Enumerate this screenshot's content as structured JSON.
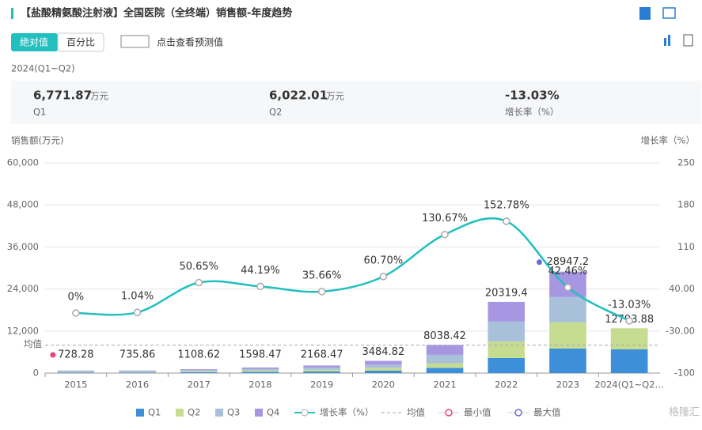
{
  "header": {
    "title": "【盐酸精氨酸注射液】全国医院（全终端）销售额-年度趋势"
  },
  "tabs": [
    "绝对值",
    "百分比"
  ],
  "forecast_toggle": "点击查看预测值",
  "period": "2024(Q1~Q2)",
  "stats": [
    {
      "value": "6,771.87",
      "unit": "万元",
      "label": "Q1"
    },
    {
      "value": "6,022.01",
      "unit": "万元",
      "label": "Q2"
    },
    {
      "value": "-13.03%",
      "label": "增长率（%）"
    }
  ],
  "watermark": "格隆汇",
  "chart_data": {
    "type": "bar",
    "stacked": true,
    "y_label": "销售额(万元)",
    "y2_label": "增长率（%）",
    "categories": [
      "2015",
      "2016",
      "2017",
      "2018",
      "2019",
      "2020",
      "2021",
      "2022",
      "2023",
      "2024(Q1~Q2…"
    ],
    "series": [
      {
        "name": "Q1",
        "color": "#3d8fd9",
        "values": [
          180,
          185,
          270,
          380,
          500,
          700,
          1500,
          4300,
          7000,
          6771.87
        ]
      },
      {
        "name": "Q2",
        "color": "#c6dc90",
        "values": [
          180,
          180,
          275,
          390,
          500,
          800,
          1300,
          4700,
          7500,
          6022.01
        ]
      },
      {
        "name": "Q3",
        "color": "#a8c0da",
        "values": [
          185,
          185,
          280,
          400,
          550,
          900,
          2400,
          5700,
          7200,
          null
        ]
      },
      {
        "name": "Q4",
        "color": "#a797e3",
        "values": [
          183.28,
          185.86,
          283.62,
          428.47,
          618.47,
          1084.82,
          2838.42,
          5619.4,
          7247.2,
          null
        ]
      },
      {
        "name": "增长率（%）",
        "type": "line",
        "axis": "y2",
        "color": "#22bfbf",
        "values": [
          0,
          1.04,
          50.65,
          44.19,
          35.66,
          60.7,
          130.67,
          152.78,
          42.46,
          -13.03
        ],
        "value_labels": [
          "0%",
          "1.04%",
          "50.65%",
          "44.19%",
          "35.66%",
          "60.70%",
          "130.67%",
          "152.78%",
          "42.46%",
          "-13.03%"
        ]
      }
    ],
    "totals": [
      728.28,
      735.86,
      1108.62,
      1598.47,
      2168.47,
      3484.82,
      8038.42,
      20319.4,
      28947.2,
      12793.88
    ],
    "average": {
      "name": "均值",
      "value": 7992.34
    },
    "min_marker": {
      "name": "最小值",
      "color": "#e8457a"
    },
    "max_marker": {
      "name": "最大值",
      "color": "#6b6bd6"
    },
    "ylim": [
      0,
      60000
    ],
    "yticks": [
      0,
      {
        "value": 12000,
        "label": "12,000"
      },
      {
        "value": 24000,
        "label": "24,000"
      },
      {
        "value": 36000,
        "label": "36,000"
      },
      {
        "value": 48000,
        "label": "48,000"
      },
      {
        "value": 60000,
        "label": "60,000"
      }
    ],
    "y2lim": [
      -100,
      250
    ],
    "y2ticks": [
      -100,
      {
        "value": -30,
        "label": "-30.00"
      },
      {
        "value": 40,
        "label": "40.00"
      },
      110,
      180,
      250
    ],
    "grid": true
  }
}
